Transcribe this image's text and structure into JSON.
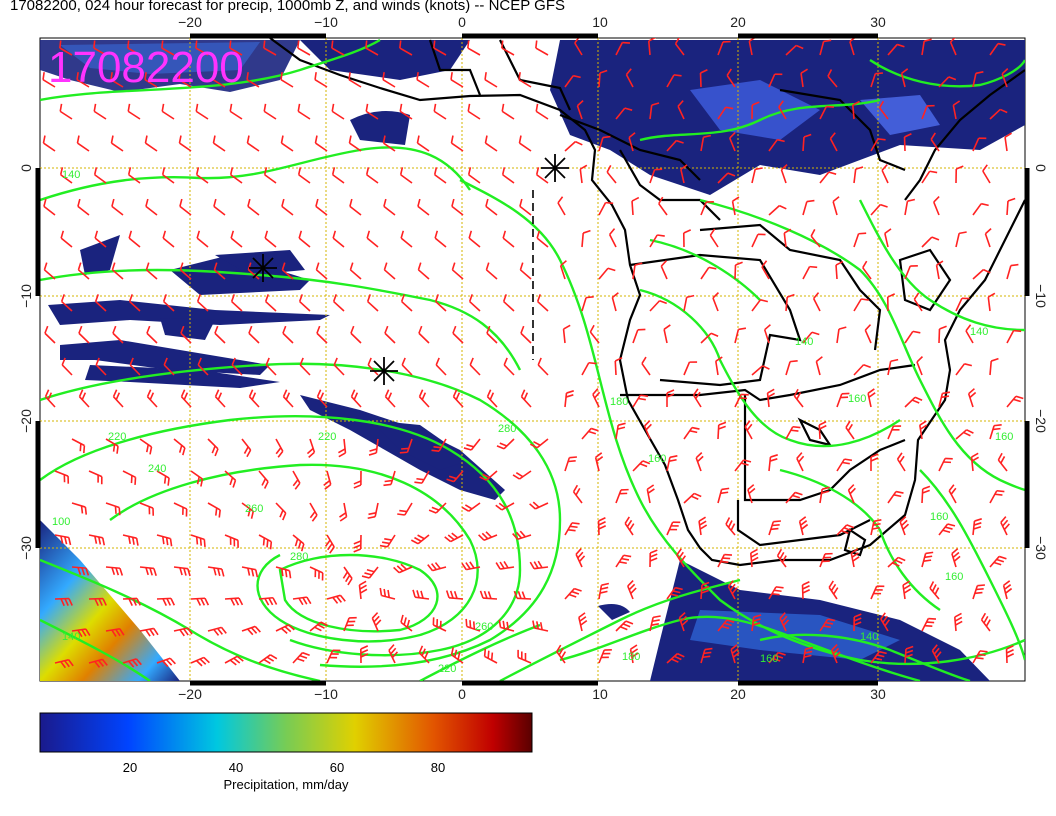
{
  "title": "17082200, 024 hour forecast for precip, 1000mb Z, and winds (knots) -- NCEP GFS",
  "stamp": "17082200",
  "axes": {
    "lon_ticks": [
      "−20",
      "−10",
      "0",
      "10",
      "20",
      "30"
    ],
    "lat_ticks": [
      "0",
      "−10",
      "−20",
      "−30"
    ]
  },
  "contour_labels": [
    "140",
    "220",
    "240",
    "260",
    "280",
    "280",
    "220",
    "180",
    "160",
    "140",
    "160",
    "160",
    "140",
    "160",
    "160",
    "220",
    "260",
    "180",
    "160",
    "140",
    "100",
    "140"
  ],
  "colorbar": {
    "ticks": [
      "20",
      "40",
      "60",
      "80"
    ],
    "label": "Precipitation, mm/day",
    "colors": [
      "#1a1a8c",
      "#0055ff",
      "#00bbdd",
      "#66cc66",
      "#ddcc00",
      "#ee6600",
      "#cc0000",
      "#660000"
    ]
  },
  "colors": {
    "contour": "#22ee22",
    "wind": "#ff2222",
    "grid": "#d4b400",
    "coast": "#000000",
    "precip_low": "#1a237e"
  }
}
